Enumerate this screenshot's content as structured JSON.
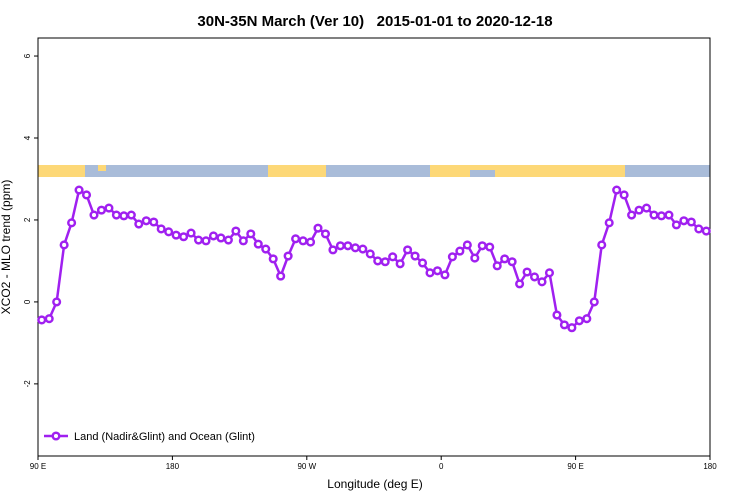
{
  "chart_data": {
    "type": "line",
    "title": "30N-35N March (Ver 10)   2015-01-01 to 2020-12-18",
    "x_label": "Longitude (deg E)",
    "y_label": "XCO2 - MLO trend (ppm)",
    "x": [
      92.5,
      97.5,
      102.5,
      107.5,
      112.5,
      117.5,
      122.5,
      127.5,
      132.5,
      137.5,
      142.5,
      147.5,
      152.5,
      157.5,
      162.5,
      167.5,
      172.5,
      177.5,
      182.5,
      187.5,
      192.5,
      197.5,
      202.5,
      207.5,
      212.5,
      217.5,
      222.5,
      227.5,
      232.5,
      237.5,
      242.5,
      247.5,
      252.5,
      257.5,
      262.5,
      267.5,
      272.5,
      277.5,
      282.5,
      287.5,
      292.5,
      297.5,
      302.5,
      307.5,
      312.5,
      317.5,
      322.5,
      327.5,
      332.5,
      337.5,
      342.5,
      347.5,
      352.5,
      357.5,
      362.5,
      367.5,
      372.5,
      377.5,
      382.5,
      387.5,
      392.5,
      397.5,
      402.5,
      407.5,
      412.5,
      417.5,
      422.5,
      427.5,
      432.5,
      437.5,
      442.5,
      447.5,
      452.5,
      457.5,
      462.5,
      467.5,
      472.5,
      477.5,
      482.5,
      487.5,
      492.5,
      497.5,
      502.5,
      507.5,
      512.5,
      517.5,
      522.5,
      527.5,
      532.5,
      537.5
    ],
    "series": [
      {
        "name": "Land (Nadir&Glint) and Ocean (Glint)",
        "color": "#a020f0",
        "values": [
          -0.44,
          -0.41,
          0,
          1.39,
          1.93,
          2.73,
          2.61,
          2.12,
          2.24,
          2.29,
          2.12,
          2.1,
          2.12,
          1.9,
          1.98,
          1.95,
          1.78,
          1.71,
          1.63,
          1.59,
          1.68,
          1.51,
          1.49,
          1.61,
          1.56,
          1.51,
          1.73,
          1.49,
          1.66,
          1.41,
          1.29,
          1.05,
          0.63,
          1.12,
          1.54,
          1.49,
          1.46,
          1.8,
          1.66,
          1.27,
          1.37,
          1.37,
          1.32,
          1.29,
          1.17,
          1.0,
          0.98,
          1.1,
          0.93,
          1.27,
          1.12,
          0.95,
          0.71,
          0.76,
          0.66,
          1.1,
          1.24,
          1.39,
          1.07,
          1.37,
          1.34,
          0.88,
          1.05,
          0.98,
          0.44,
          0.73,
          0.61,
          0.49,
          0.71,
          -0.32,
          -0.56,
          -0.63,
          -0.46,
          -0.41,
          0,
          1.39,
          1.93,
          2.73,
          2.61,
          2.12,
          2.24,
          2.29,
          2.12,
          2.1,
          2.12,
          1.88,
          1.98,
          1.95,
          1.78,
          1.73
        ]
      }
    ],
    "xlim": [
      90,
      540
    ],
    "xticks": [
      {
        "value": 90,
        "label": "90 E"
      },
      180,
      {
        "value": 270,
        "label": "90 W"
      },
      {
        "value": 360,
        "label": "0"
      },
      {
        "value": 450,
        "label": "90 E"
      },
      {
        "value": 540,
        "label": "180"
      }
    ],
    "ylim": [
      -3.76,
      6.44
    ],
    "yticks": [
      -2,
      0,
      2,
      4,
      6
    ],
    "legend": "bottom-left"
  }
}
